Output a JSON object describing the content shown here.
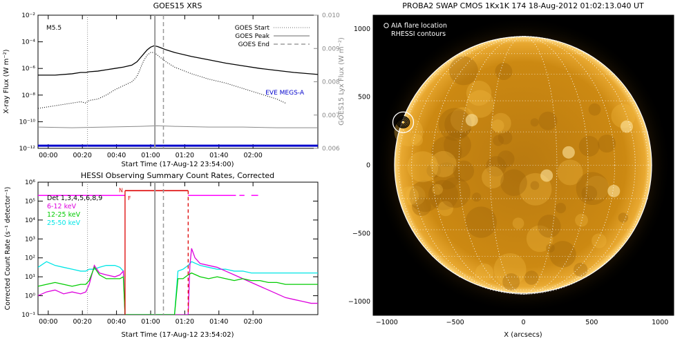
{
  "colors": {
    "goes_main": "#000000",
    "goes_dotted": "#000000",
    "goes_gray": "#888888",
    "eve": "#0000cc",
    "hessi_red": "#dd0000",
    "det": "#ff00ff",
    "band_6_12": "#dd00dd",
    "band_12_25": "#00cc00",
    "band_25_50": "#00e6e6",
    "sun_bg": "#000000",
    "sun_disk": "#d28c12"
  },
  "chart_data": [
    {
      "id": "goes",
      "type": "line",
      "title": "GOES15 XRS",
      "xlabel": "Start Time (17-Aug-12 23:54:00)",
      "ylabel": "X-ray Flux (W m⁻²)",
      "ylabel_right": "GOES15 Lyx Flux (W m⁻²)",
      "xlim": [
        0,
        164
      ],
      "ylim_log": [
        -12,
        -2
      ],
      "xticks": [
        {
          "v": 6,
          "t": "00:00"
        },
        {
          "v": 26,
          "t": "00:20"
        },
        {
          "v": 46,
          "t": "00:40"
        },
        {
          "v": 66,
          "t": "01:00"
        },
        {
          "v": 86,
          "t": "01:20"
        },
        {
          "v": 106,
          "t": "01:40"
        },
        {
          "v": 126,
          "t": "02:00"
        }
      ],
      "yticks": [
        {
          "e": -12,
          "t": "10⁻¹²"
        },
        {
          "e": -10,
          "t": "10⁻¹⁰"
        },
        {
          "e": -8,
          "t": "10⁻⁸"
        },
        {
          "e": -6,
          "t": "10⁻⁶"
        },
        {
          "e": -4,
          "t": "10⁻⁴"
        },
        {
          "e": -2,
          "t": "10⁻²"
        }
      ],
      "right_ticks": [
        "0.010",
        "0.009",
        "0.008",
        "0.007",
        "0.006"
      ],
      "annotation": "M5.5",
      "eve_label": "EVE MEGS-A",
      "legend": [
        {
          "label": "GOES Start",
          "style": "dotted"
        },
        {
          "label": "GOES Peak",
          "style": "solid"
        },
        {
          "label": "GOES End",
          "style": "dashed"
        }
      ],
      "markers": {
        "start": 29,
        "peak": 68.5,
        "end": 73.5
      },
      "series": [
        {
          "name": "long",
          "x": [
            0,
            10,
            20,
            25,
            28,
            30,
            35,
            40,
            45,
            50,
            55,
            58,
            60,
            62,
            64,
            66,
            68,
            70,
            72,
            75,
            80,
            90,
            100,
            110,
            120,
            130,
            140,
            150,
            164
          ],
          "log": [
            -6.5,
            -6.5,
            -6.4,
            -6.3,
            -6.3,
            -6.25,
            -6.2,
            -6.1,
            -6.0,
            -5.9,
            -5.75,
            -5.5,
            -5.2,
            -4.9,
            -4.6,
            -4.4,
            -4.3,
            -4.35,
            -4.45,
            -4.6,
            -4.8,
            -5.1,
            -5.35,
            -5.6,
            -5.8,
            -6.0,
            -6.15,
            -6.3,
            -6.45
          ]
        },
        {
          "name": "short",
          "x": [
            0,
            10,
            20,
            25,
            28,
            30,
            35,
            40,
            45,
            50,
            55,
            58,
            60,
            62,
            64,
            66,
            68,
            70,
            72,
            75,
            80,
            90,
            100,
            110,
            120,
            130,
            140,
            145
          ],
          "log": [
            -9.0,
            -8.8,
            -8.6,
            -8.5,
            -8.6,
            -8.4,
            -8.3,
            -8.0,
            -7.6,
            -7.3,
            -7.0,
            -6.6,
            -6.0,
            -5.4,
            -5.0,
            -4.8,
            -4.8,
            -5.0,
            -5.2,
            -5.5,
            -5.9,
            -6.4,
            -6.8,
            -7.1,
            -7.5,
            -7.9,
            -8.3,
            -8.6
          ]
        },
        {
          "name": "lyman",
          "x": [
            0,
            20,
            40,
            60,
            70,
            80,
            100,
            120,
            140,
            164
          ],
          "log": [
            -10.4,
            -10.45,
            -10.4,
            -10.35,
            -10.3,
            -10.35,
            -10.4,
            -10.4,
            -10.45,
            -10.45
          ]
        },
        {
          "name": "eve",
          "x": [
            0,
            164
          ],
          "log": [
            -11.8,
            -11.8
          ]
        }
      ]
    },
    {
      "id": "hessi",
      "type": "line",
      "title": "HESSI Observing Summary Count Rates, Corrected",
      "xlabel": "Start Time (17-Aug-12 23:54:02)",
      "ylabel": "Corrected Count Rate (s⁻¹ detector⁻¹)",
      "xlim": [
        0,
        164
      ],
      "ylim_log": [
        -1,
        6
      ],
      "xticks": [
        {
          "v": 6,
          "t": "00:00"
        },
        {
          "v": 26,
          "t": "00:20"
        },
        {
          "v": 46,
          "t": "00:40"
        },
        {
          "v": 66,
          "t": "01:00"
        },
        {
          "v": 86,
          "t": "01:20"
        },
        {
          "v": 106,
          "t": "01:40"
        },
        {
          "v": 126,
          "t": "02:00"
        }
      ],
      "yticks": [
        {
          "e": -1,
          "t": "10⁻¹"
        },
        {
          "e": 0,
          "t": "10⁰"
        },
        {
          "e": 1,
          "t": "10¹"
        },
        {
          "e": 2,
          "t": "10²"
        },
        {
          "e": 3,
          "t": "10³"
        },
        {
          "e": 4,
          "t": "10⁴"
        },
        {
          "e": 5,
          "t": "10⁵"
        },
        {
          "e": 6,
          "t": "10⁶"
        }
      ],
      "legend": [
        {
          "label": "Det 1,3,4,5,6,8,9",
          "key": "det"
        },
        {
          "label": "6-12 keV",
          "key": "band_6_12"
        },
        {
          "label": "12-25 keV",
          "key": "band_12_25"
        },
        {
          "label": "25-50 keV",
          "key": "band_25_50"
        }
      ],
      "flags": [
        "N",
        "F"
      ],
      "markers": {
        "start": 29,
        "peak": 68.5,
        "end": 73.5,
        "night_start": 51,
        "night_end": 88
      },
      "series": [
        {
          "name": "6-12 keV",
          "x": [
            0,
            5,
            10,
            15,
            20,
            25,
            28,
            30,
            33,
            36,
            40,
            45,
            48,
            50,
            51,
            88,
            89,
            90,
            92,
            95,
            100,
            105,
            110,
            115,
            120,
            125,
            130,
            135,
            140,
            145,
            150,
            155,
            160,
            164
          ],
          "log": [
            0.0,
            0.2,
            0.3,
            0.1,
            0.2,
            0.1,
            0.2,
            0.6,
            1.6,
            1.2,
            1.1,
            1.0,
            1.1,
            1.3,
            -1,
            -1,
            1.6,
            2.5,
            2.0,
            1.7,
            1.6,
            1.5,
            1.3,
            1.1,
            0.9,
            0.7,
            0.5,
            0.3,
            0.1,
            -0.1,
            -0.2,
            -0.3,
            -0.4,
            -0.4
          ]
        },
        {
          "name": "12-25 keV",
          "x": [
            0,
            5,
            10,
            15,
            20,
            25,
            28,
            30,
            33,
            36,
            40,
            45,
            48,
            50,
            51,
            80,
            82,
            85,
            88,
            90,
            95,
            100,
            105,
            110,
            115,
            120,
            125,
            130,
            135,
            140,
            145,
            150,
            155,
            160,
            164
          ],
          "log": [
            0.5,
            0.6,
            0.7,
            0.6,
            0.5,
            0.6,
            0.6,
            0.8,
            1.5,
            1.1,
            0.9,
            0.9,
            0.9,
            1.0,
            -1,
            -1,
            0.9,
            0.9,
            1.1,
            1.2,
            1.0,
            0.9,
            1.0,
            0.9,
            0.8,
            0.9,
            0.8,
            0.8,
            0.7,
            0.7,
            0.6,
            0.6,
            0.6,
            0.6,
            0.6
          ]
        },
        {
          "name": "25-50 keV",
          "x": [
            0,
            5,
            10,
            15,
            20,
            25,
            28,
            30,
            33,
            36,
            40,
            45,
            48,
            50,
            51,
            80,
            82,
            85,
            88,
            90,
            95,
            100,
            105,
            110,
            115,
            120,
            125,
            130,
            135,
            140,
            145,
            150,
            155,
            160,
            164
          ],
          "log": [
            1.5,
            1.8,
            1.6,
            1.5,
            1.4,
            1.3,
            1.3,
            1.4,
            1.4,
            1.5,
            1.6,
            1.6,
            1.5,
            1.3,
            -1,
            -1,
            1.3,
            1.4,
            1.6,
            1.8,
            1.6,
            1.5,
            1.4,
            1.4,
            1.3,
            1.3,
            1.2,
            1.2,
            1.2,
            1.2,
            1.2,
            1.2,
            1.2,
            1.2,
            1.2
          ]
        },
        {
          "name": "det",
          "x": [
            0,
            51
          ],
          "log": [
            5.3,
            5.3
          ]
        }
      ]
    },
    {
      "id": "swap",
      "type": "heatmap",
      "title": "PROBA2 SWAP CMOS 1Kx1K 174 18-Aug-2012 01:02:13.040 UT",
      "xlabel": "X (arcsecs)",
      "xlim": [
        -1100,
        1100
      ],
      "ylim": [
        -1100,
        1100
      ],
      "xticks": [
        {
          "v": -1000,
          "t": "−1000"
        },
        {
          "v": -500,
          "t": "−500"
        },
        {
          "v": 0,
          "t": "0"
        },
        {
          "v": 500,
          "t": "500"
        },
        {
          "v": 1000,
          "t": "1000"
        }
      ],
      "yticks": [
        {
          "v": 1000,
          "t": "1000"
        },
        {
          "v": 500,
          "t": "500"
        },
        {
          "v": 0,
          "t": "0"
        },
        {
          "v": -500,
          "t": "−500"
        },
        {
          "v": -1000,
          "t": "−1000"
        }
      ],
      "legend": [
        "AIA flare location",
        "RHESSI contours"
      ],
      "solar_radius": 945,
      "flare": {
        "x": -880,
        "y": 315
      }
    }
  ]
}
